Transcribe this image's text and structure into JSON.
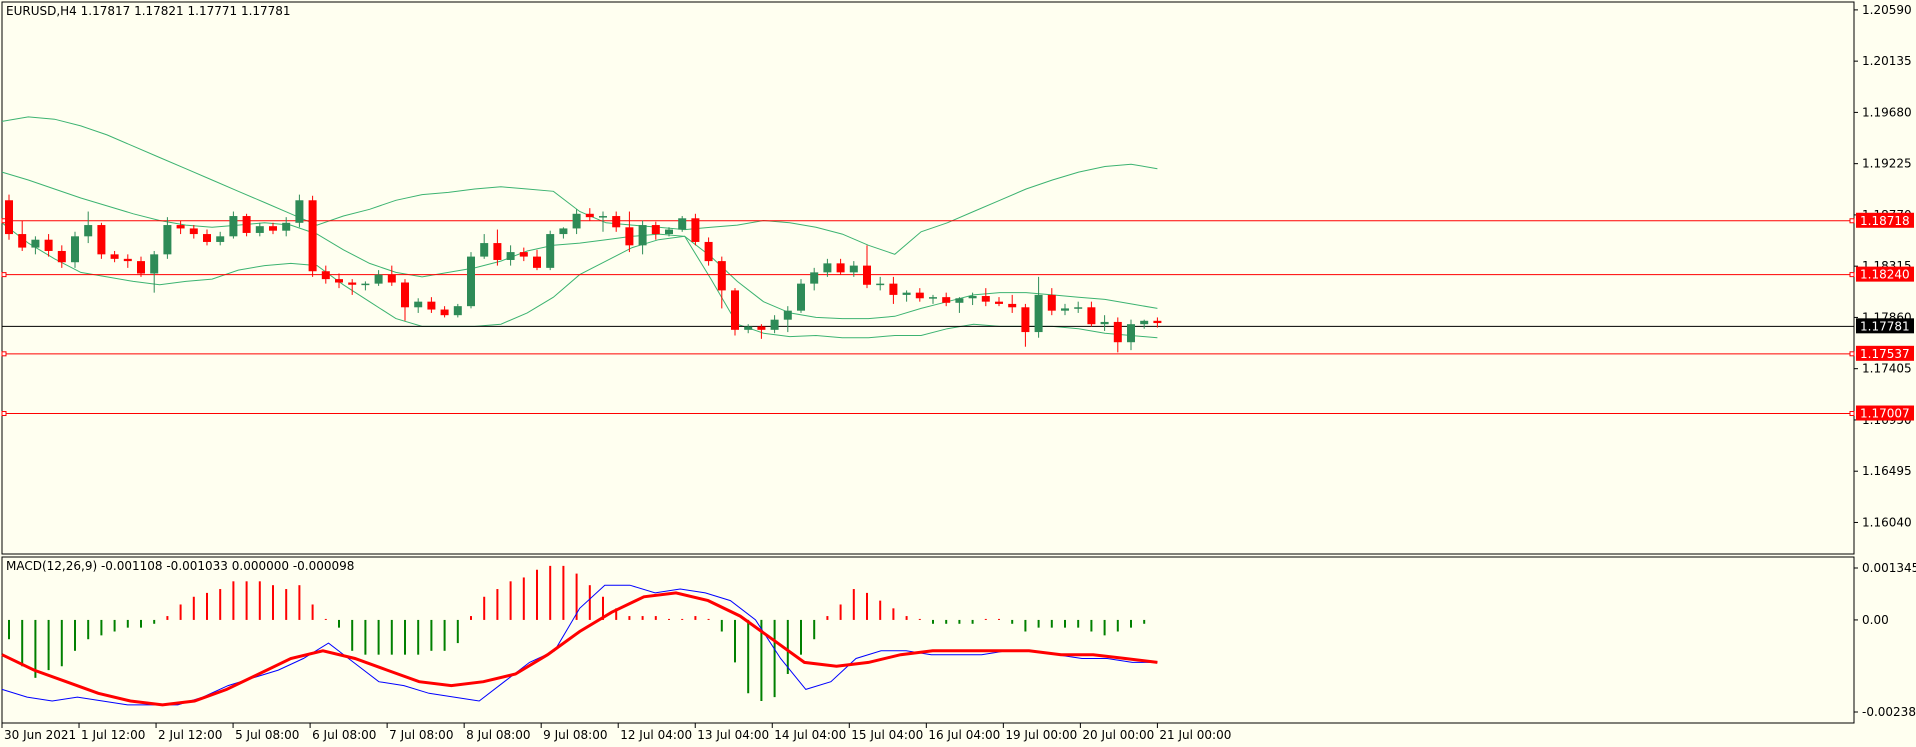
{
  "header": {
    "symbol_info": "EURUSD,H4  1.17817 1.17821 1.17771 1.17781",
    "macd_info": "MACD(12,26,9) -0.001108 -0.001033 0.000000 -0.000098"
  },
  "colors": {
    "background": "#fffff0",
    "bull_candle": "#2e8b57",
    "bear_candle": "#ff0000",
    "bollinger": "#3cb371",
    "hline": "#ff0000",
    "price_line": "#000000",
    "macd_hist_pos": "#ff0000",
    "macd_hist_neg": "#008000",
    "macd_line": "#0000ff",
    "signal_line": "#ff0000"
  },
  "chart_data": [
    {
      "type": "candlestick",
      "title": "EURUSD,H4",
      "ohlc_header": [
        1.17817,
        1.17821,
        1.17771,
        1.17781
      ],
      "ylim": [
        1.1576,
        1.2066
      ],
      "y_ticks": [
        "1.20590",
        "1.20135",
        "1.19680",
        "1.19225",
        "1.18770",
        "1.18315",
        "1.17860",
        "1.17405",
        "1.16950",
        "1.16495",
        "1.16040"
      ],
      "x_ticks": [
        "30 Jun 2021",
        "1 Jul 12:00",
        "2 Jul 12:00",
        "5 Jul 08:00",
        "6 Jul 08:00",
        "7 Jul 08:00",
        "8 Jul 08:00",
        "9 Jul 08:00",
        "12 Jul 04:00",
        "13 Jul 04:00",
        "14 Jul 04:00",
        "15 Jul 04:00",
        "16 Jul 04:00",
        "19 Jul 00:00",
        "20 Jul 00:00",
        "21 Jul 00:00"
      ],
      "hlines": [
        {
          "label": "1.18718",
          "value": 1.18718
        },
        {
          "label": "1.18240",
          "value": 1.1824
        },
        {
          "label": "1.17537",
          "value": 1.17537
        },
        {
          "label": "1.17007",
          "value": 1.17007
        }
      ],
      "current_price": {
        "label": "1.17781",
        "value": 1.17781
      },
      "candles": [
        [
          1.189,
          1.1895,
          1.1855,
          1.186
        ],
        [
          1.186,
          1.1872,
          1.1845,
          1.1848
        ],
        [
          1.1848,
          1.1858,
          1.1842,
          1.1855
        ],
        [
          1.1855,
          1.186,
          1.184,
          1.1845
        ],
        [
          1.1845,
          1.185,
          1.183,
          1.1835
        ],
        [
          1.1835,
          1.1862,
          1.183,
          1.1858
        ],
        [
          1.1858,
          1.188,
          1.1852,
          1.1868
        ],
        [
          1.1868,
          1.187,
          1.1838,
          1.1842
        ],
        [
          1.1842,
          1.1845,
          1.1835,
          1.1838
        ],
        [
          1.1838,
          1.1842,
          1.183,
          1.1836
        ],
        [
          1.1836,
          1.184,
          1.1822,
          1.1825
        ],
        [
          1.1825,
          1.1845,
          1.1808,
          1.1842
        ],
        [
          1.1842,
          1.1875,
          1.1838,
          1.1868
        ],
        [
          1.1868,
          1.1872,
          1.186,
          1.1865
        ],
        [
          1.1865,
          1.1868,
          1.1856,
          1.186
        ],
        [
          1.186,
          1.1864,
          1.185,
          1.1853
        ],
        [
          1.1853,
          1.1862,
          1.185,
          1.1858
        ],
        [
          1.1858,
          1.188,
          1.1856,
          1.1876
        ],
        [
          1.1876,
          1.1878,
          1.1858,
          1.1861
        ],
        [
          1.1861,
          1.187,
          1.1858,
          1.1867
        ],
        [
          1.1867,
          1.187,
          1.186,
          1.1863
        ],
        [
          1.1863,
          1.1875,
          1.1858,
          1.187
        ],
        [
          1.187,
          1.1895,
          1.1866,
          1.189
        ],
        [
          1.189,
          1.1894,
          1.1822,
          1.1827
        ],
        [
          1.1827,
          1.1832,
          1.1816,
          1.182
        ],
        [
          1.182,
          1.1825,
          1.1812,
          1.1817
        ],
        [
          1.1817,
          1.182,
          1.1806,
          1.1815
        ],
        [
          1.1815,
          1.1818,
          1.181,
          1.1816
        ],
        [
          1.1816,
          1.1828,
          1.1814,
          1.1824
        ],
        [
          1.1824,
          1.1832,
          1.1814,
          1.1817
        ],
        [
          1.1817,
          1.182,
          1.1783,
          1.1795
        ],
        [
          1.1795,
          1.1803,
          1.179,
          1.18
        ],
        [
          1.18,
          1.1804,
          1.179,
          1.1793
        ],
        [
          1.1793,
          1.1796,
          1.1786,
          1.1788
        ],
        [
          1.1788,
          1.1798,
          1.1786,
          1.1796
        ],
        [
          1.1796,
          1.1844,
          1.1794,
          1.184
        ],
        [
          1.184,
          1.186,
          1.1838,
          1.1852
        ],
        [
          1.1852,
          1.1864,
          1.1832,
          1.1837
        ],
        [
          1.1837,
          1.185,
          1.1832,
          1.1844
        ],
        [
          1.1844,
          1.1848,
          1.1836,
          1.184
        ],
        [
          1.184,
          1.1846,
          1.1828,
          1.183
        ],
        [
          1.183,
          1.1863,
          1.1828,
          1.186
        ],
        [
          1.186,
          1.1866,
          1.1856,
          1.1865
        ],
        [
          1.1865,
          1.1882,
          1.186,
          1.1878
        ],
        [
          1.1878,
          1.1883,
          1.1872,
          1.1875
        ],
        [
          1.1875,
          1.188,
          1.1862,
          1.1876
        ],
        [
          1.1876,
          1.188,
          1.1862,
          1.1866
        ],
        [
          1.1866,
          1.188,
          1.1844,
          1.185
        ],
        [
          1.185,
          1.1872,
          1.1842,
          1.1868
        ],
        [
          1.1868,
          1.1871,
          1.1855,
          1.186
        ],
        [
          1.186,
          1.1866,
          1.1858,
          1.1864
        ],
        [
          1.1864,
          1.1876,
          1.1862,
          1.1874
        ],
        [
          1.1874,
          1.1878,
          1.185,
          1.1853
        ],
        [
          1.1853,
          1.1857,
          1.1832,
          1.1836
        ],
        [
          1.1836,
          1.184,
          1.1794,
          1.181
        ],
        [
          1.181,
          1.1812,
          1.177,
          1.1775
        ],
        [
          1.1775,
          1.178,
          1.1772,
          1.1778
        ],
        [
          1.1778,
          1.178,
          1.1767,
          1.1775
        ],
        [
          1.1775,
          1.1788,
          1.1772,
          1.1784
        ],
        [
          1.1784,
          1.1796,
          1.1773,
          1.1792
        ],
        [
          1.1792,
          1.182,
          1.179,
          1.1816
        ],
        [
          1.1816,
          1.183,
          1.181,
          1.1826
        ],
        [
          1.1826,
          1.1838,
          1.1822,
          1.1834
        ],
        [
          1.1834,
          1.1838,
          1.1824,
          1.1826
        ],
        [
          1.1826,
          1.1836,
          1.1822,
          1.1832
        ],
        [
          1.1832,
          1.185,
          1.1812,
          1.1815
        ],
        [
          1.1815,
          1.1822,
          1.181,
          1.1816
        ],
        [
          1.1816,
          1.1822,
          1.1798,
          1.1806
        ],
        [
          1.1806,
          1.181,
          1.18,
          1.1808
        ],
        [
          1.1808,
          1.1812,
          1.18,
          1.1803
        ],
        [
          1.1803,
          1.1806,
          1.1798,
          1.1804
        ],
        [
          1.1804,
          1.1808,
          1.1796,
          1.1799
        ],
        [
          1.1799,
          1.1804,
          1.179,
          1.1803
        ],
        [
          1.1803,
          1.1808,
          1.1797,
          1.1805
        ],
        [
          1.1805,
          1.1812,
          1.1796,
          1.18
        ],
        [
          1.18,
          1.1804,
          1.1796,
          1.1798
        ],
        [
          1.1798,
          1.1806,
          1.179,
          1.1795
        ],
        [
          1.1795,
          1.1798,
          1.176,
          1.1773
        ],
        [
          1.1773,
          1.1822,
          1.1768,
          1.1806
        ],
        [
          1.1806,
          1.1812,
          1.1788,
          1.1792
        ],
        [
          1.1792,
          1.1798,
          1.1788,
          1.1794
        ],
        [
          1.1794,
          1.18,
          1.179,
          1.1795
        ],
        [
          1.1795,
          1.18,
          1.1778,
          1.178
        ],
        [
          1.178,
          1.1788,
          1.1774,
          1.1782
        ],
        [
          1.1782,
          1.1786,
          1.1755,
          1.1764
        ],
        [
          1.1764,
          1.1784,
          1.1757,
          1.178
        ],
        [
          1.178,
          1.1784,
          1.1776,
          1.1783
        ],
        [
          1.1783,
          1.1786,
          1.1777,
          1.1781
        ]
      ],
      "bollinger_upper": [
        1.196,
        1.1964,
        1.1962,
        1.1956,
        1.1948,
        1.1938,
        1.1928,
        1.1918,
        1.1908,
        1.1898,
        1.1888,
        1.1878,
        1.1868,
        1.1876,
        1.1882,
        1.189,
        1.1895,
        1.1897,
        1.19,
        1.1902,
        1.19,
        1.1898,
        1.188,
        1.187,
        1.1868,
        1.1866,
        1.1864,
        1.1866,
        1.1868,
        1.1872,
        1.187,
        1.1866,
        1.186,
        1.185,
        1.1842,
        1.1862,
        1.187,
        1.188,
        1.189,
        1.19,
        1.1908,
        1.1915,
        1.192,
        1.1922,
        1.1918
      ],
      "bollinger_middle": [
        1.1915,
        1.1908,
        1.19,
        1.1892,
        1.1885,
        1.1878,
        1.1872,
        1.1868,
        1.1866,
        1.1868,
        1.187,
        1.1868,
        1.186,
        1.1846,
        1.1834,
        1.1826,
        1.1822,
        1.1826,
        1.183,
        1.1836,
        1.1845,
        1.185,
        1.1852,
        1.1855,
        1.1858,
        1.186,
        1.1858,
        1.184,
        1.1818,
        1.18,
        1.179,
        1.1786,
        1.1785,
        1.1785,
        1.1787,
        1.1794,
        1.18,
        1.1806,
        1.1808,
        1.1808,
        1.1806,
        1.1804,
        1.1802,
        1.1798,
        1.1794
      ],
      "bollinger_lower": [
        1.187,
        1.1852,
        1.1838,
        1.1826,
        1.1822,
        1.1818,
        1.1815,
        1.1818,
        1.182,
        1.1828,
        1.1832,
        1.1834,
        1.1832,
        1.1815,
        1.18,
        1.1785,
        1.1778,
        1.1778,
        1.1778,
        1.178,
        1.179,
        1.1804,
        1.1824,
        1.1836,
        1.1848,
        1.1855,
        1.1858,
        1.182,
        1.178,
        1.1772,
        1.1769,
        1.177,
        1.1768,
        1.1768,
        1.177,
        1.177,
        1.1776,
        1.178,
        1.1778,
        1.1778,
        1.1778,
        1.1776,
        1.1772,
        1.177,
        1.1768
      ]
    },
    {
      "type": "macd",
      "title": "MACD(12,26,9)",
      "params": [
        12,
        26,
        9
      ],
      "values_header": [
        -0.001108,
        -0.001033,
        0.0,
        -9.8e-05
      ],
      "ylim": [
        -0.002385,
        0.001345
      ],
      "y_ticks": [
        "0.001345",
        "0.00",
        "-0.002385"
      ],
      "histogram": [
        -0.0005,
        -0.0012,
        -0.0015,
        -0.0013,
        -0.0012,
        -0.0008,
        -0.0005,
        -0.0004,
        -0.0003,
        -0.0002,
        -0.0002,
        -0.0001,
        0.0001,
        0.0004,
        0.0006,
        0.0007,
        0.0008,
        0.001,
        0.001,
        0.001,
        0.0009,
        0.0008,
        0.0009,
        0.0004,
        0.0,
        -0.0002,
        -0.0008,
        -0.0009,
        -0.0009,
        -0.0009,
        -0.0009,
        -0.0009,
        -0.0008,
        -0.0008,
        -0.0006,
        0.0001,
        0.0006,
        0.0008,
        0.001,
        0.0011,
        0.0013,
        0.0014,
        0.0014,
        0.0012,
        0.0009,
        0.0006,
        0.0003,
        0.0001,
        0.0001,
        0.0001,
        0.0,
        0.0,
        0.0001,
        0.0,
        -0.0003,
        -0.0011,
        -0.0019,
        -0.0021,
        -0.002,
        -0.0014,
        -0.0009,
        -0.0005,
        0.0001,
        0.0004,
        0.0008,
        0.0007,
        0.0005,
        0.0003,
        0.0001,
        0.0,
        -0.0001,
        -0.0001,
        -0.0001,
        -0.0001,
        0.0,
        0.0,
        -0.0001,
        -0.0003,
        -0.0002,
        -0.0002,
        -0.0002,
        -0.0002,
        -0.0003,
        -0.0004,
        -0.0003,
        -0.0002,
        -0.0001
      ],
      "macd_line": [
        -0.0018,
        -0.002,
        -0.0021,
        -0.002,
        -0.0021,
        -0.0022,
        -0.0022,
        -0.0022,
        -0.002,
        -0.0017,
        -0.0015,
        -0.0013,
        -0.001,
        -0.0006,
        -0.0011,
        -0.0016,
        -0.0017,
        -0.0019,
        -0.002,
        -0.0021,
        -0.0016,
        -0.0011,
        -0.0008,
        0.0003,
        0.0009,
        0.0009,
        0.0007,
        0.0008,
        0.0007,
        0.0005,
        0.0,
        -0.001,
        -0.0018,
        -0.0016,
        -0.001,
        -0.0008,
        -0.0008,
        -0.0009,
        -0.0009,
        -0.0009,
        -0.0008,
        -0.0008,
        -0.0009,
        -0.001,
        -0.001,
        -0.0011,
        -0.0011
      ],
      "signal_line": [
        -0.0009,
        -0.0013,
        -0.0016,
        -0.0019,
        -0.0021,
        -0.0022,
        -0.0021,
        -0.0018,
        -0.0014,
        -0.001,
        -0.0008,
        -0.001,
        -0.0013,
        -0.0016,
        -0.0017,
        -0.0016,
        -0.0014,
        -0.0009,
        -0.0003,
        0.0002,
        0.0006,
        0.0007,
        0.0005,
        0.0001,
        -0.0005,
        -0.0011,
        -0.0012,
        -0.0011,
        -0.0009,
        -0.0008,
        -0.0008,
        -0.0008,
        -0.0008,
        -0.0009,
        -0.0009,
        -0.001,
        -0.0011
      ]
    }
  ]
}
